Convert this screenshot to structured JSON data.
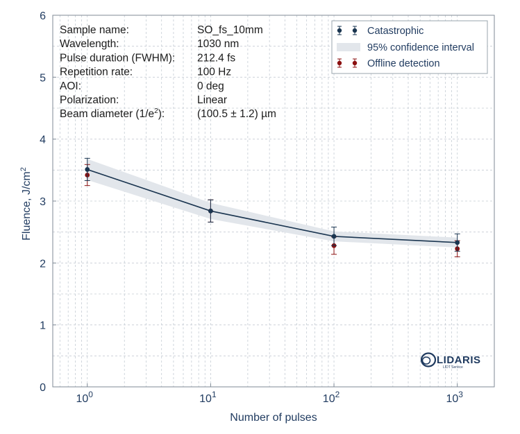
{
  "chart_data": {
    "type": "line",
    "xlabel": "Number of pulses",
    "ylabel": "Fluence, J/cm",
    "ylabel_sup": "2",
    "xscale": "log",
    "xlim_exp": [
      -0.28,
      3.3
    ],
    "ylim": [
      0,
      6
    ],
    "x_ticks": [
      {
        "base": "10",
        "exp": "0",
        "value": 1
      },
      {
        "base": "10",
        "exp": "1",
        "value": 10
      },
      {
        "base": "10",
        "exp": "2",
        "value": 100
      },
      {
        "base": "10",
        "exp": "3",
        "value": 1000
      }
    ],
    "y_ticks": [
      "0",
      "1",
      "2",
      "3",
      "4",
      "5",
      "6"
    ],
    "grid": true,
    "series": [
      {
        "name": "Catastrophic",
        "color": "#1a3550",
        "x": [
          1,
          10,
          100,
          1000
        ],
        "y": [
          3.51,
          2.84,
          2.43,
          2.33
        ],
        "err": [
          0.18,
          0.18,
          0.15,
          0.14
        ]
      },
      {
        "name": "Offline detection",
        "color": "#8b1010",
        "x": [
          1,
          10,
          100,
          1000
        ],
        "y": [
          3.42,
          2.84,
          2.28,
          2.23
        ],
        "err": [
          0.17,
          0.18,
          0.14,
          0.13
        ]
      }
    ],
    "fit_line": {
      "x": [
        1,
        10,
        100,
        1000
      ],
      "y": [
        3.51,
        2.84,
        2.43,
        2.33
      ],
      "color": "#1a3550"
    },
    "confidence_band": {
      "label": "95% confidence interval",
      "color": "#e2e6eb",
      "x": [
        1,
        10,
        100,
        1000
      ],
      "upper": [
        3.68,
        2.97,
        2.51,
        2.41
      ],
      "lower": [
        3.34,
        2.71,
        2.35,
        2.25
      ]
    },
    "legend": {
      "position": "top-right",
      "items": [
        "Catastrophic",
        "95% confidence interval",
        "Offline detection"
      ]
    },
    "info": [
      {
        "key": "Sample name:",
        "value": "SO_fs_10mm"
      },
      {
        "key": "Wavelength:",
        "value": "1030 nm"
      },
      {
        "key": "Pulse duration (FWHM):",
        "value": "212.4 fs"
      },
      {
        "key": "Repetition rate:",
        "value": "100 Hz"
      },
      {
        "key": "AOI:",
        "value": "0 deg"
      },
      {
        "key": "Polarization:",
        "value": "Linear"
      },
      {
        "key": "Beam diameter (1/e",
        "key_sup": "2",
        "key_tail": "):",
        "value": "(100.5 ± 1.2) µm"
      }
    ],
    "logo": {
      "name": "LIDARIS",
      "subtitle": "LIDT Service"
    }
  }
}
